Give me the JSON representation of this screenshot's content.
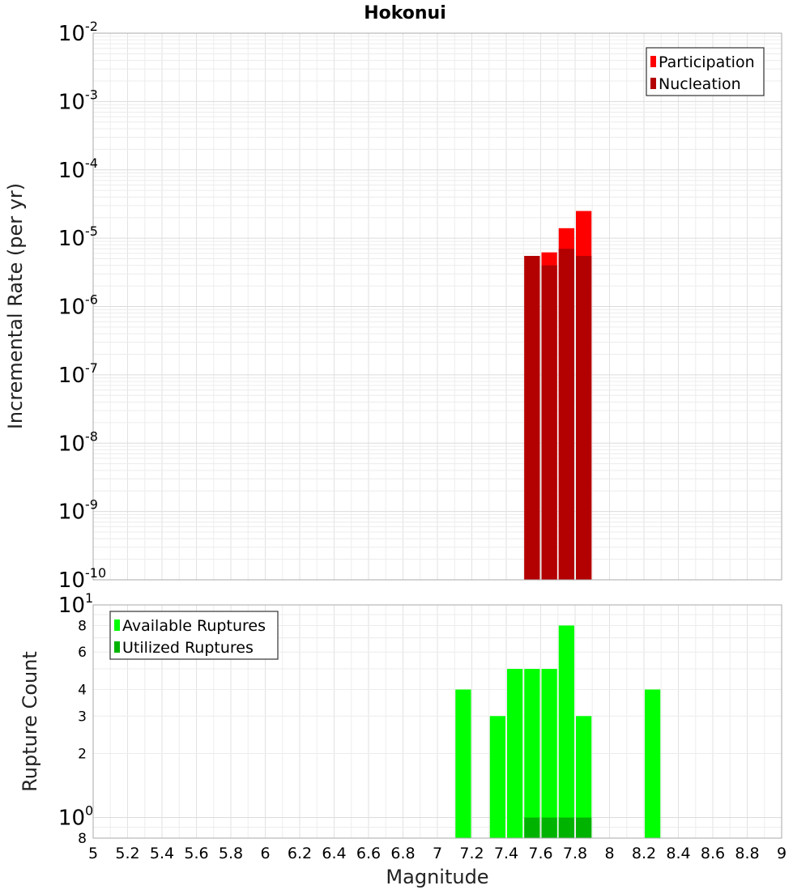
{
  "chart_data": [
    {
      "type": "bar",
      "title": "Hokonui",
      "xlabel": "",
      "ylabel": "Incremental Rate (per yr)",
      "xlim": [
        5,
        9
      ],
      "ylim": [
        1e-10,
        0.01
      ],
      "yscale": "log",
      "grid": true,
      "legend_position": "top-right",
      "x": [
        7.55,
        7.65,
        7.75,
        7.85
      ],
      "bar_width": 0.1,
      "y_tick_labels": [
        {
          "value": 1e-10,
          "base": "10",
          "exp": "-10"
        },
        {
          "value": 1e-09,
          "base": "10",
          "exp": "-9"
        },
        {
          "value": 1e-08,
          "base": "10",
          "exp": "-8"
        },
        {
          "value": 1e-07,
          "base": "10",
          "exp": "-7"
        },
        {
          "value": 1e-06,
          "base": "10",
          "exp": "-6"
        },
        {
          "value": 1e-05,
          "base": "10",
          "exp": "-5"
        },
        {
          "value": 0.0001,
          "base": "10",
          "exp": "-4"
        },
        {
          "value": 0.001,
          "base": "10",
          "exp": "-3"
        },
        {
          "value": 0.01,
          "base": "10",
          "exp": "-2"
        }
      ],
      "series": [
        {
          "name": "Participation",
          "color": "#ff0000",
          "values": [
            5.5e-06,
            6.2e-06,
            1.4e-05,
            2.5e-05
          ]
        },
        {
          "name": "Nucleation",
          "color": "#b30000",
          "values": [
            5.5e-06,
            4e-06,
            7e-06,
            5.5e-06
          ]
        }
      ]
    },
    {
      "type": "bar",
      "title": "",
      "xlabel": "Magnitude",
      "ylabel": "Rupture Count",
      "xlim": [
        5,
        9
      ],
      "ylim": [
        0.8,
        10
      ],
      "yscale": "log",
      "grid": true,
      "legend_position": "top-left",
      "x": [
        7.15,
        7.35,
        7.45,
        7.55,
        7.65,
        7.75,
        7.85,
        8.25
      ],
      "bar_width": 0.1,
      "x_tick_labels": [
        "5",
        "5.2",
        "5.4",
        "5.6",
        "5.8",
        "6",
        "6.2",
        "6.4",
        "6.6",
        "6.8",
        "7",
        "7.2",
        "7.4",
        "7.6",
        "7.8",
        "8",
        "8.2",
        "8.4",
        "8.6",
        "8.8",
        "9"
      ],
      "y_tick_labels": [
        {
          "value": 0.8,
          "base": "8",
          "exp": ""
        },
        {
          "value": 1,
          "base": "10",
          "exp": "0"
        },
        {
          "value": 2,
          "base": "2",
          "exp": ""
        },
        {
          "value": 3,
          "base": "3",
          "exp": ""
        },
        {
          "value": 4,
          "base": "4",
          "exp": ""
        },
        {
          "value": 6,
          "base": "6",
          "exp": ""
        },
        {
          "value": 8,
          "base": "8",
          "exp": ""
        },
        {
          "value": 10,
          "base": "10",
          "exp": "1"
        }
      ],
      "series": [
        {
          "name": "Available Ruptures",
          "color": "#00ff00",
          "values": [
            4,
            3,
            5,
            5,
            5,
            8,
            3,
            4
          ]
        },
        {
          "name": "Utilized Ruptures",
          "color": "#00b300",
          "values": [
            0,
            0,
            0,
            1,
            1,
            1,
            1,
            0
          ]
        }
      ]
    }
  ]
}
